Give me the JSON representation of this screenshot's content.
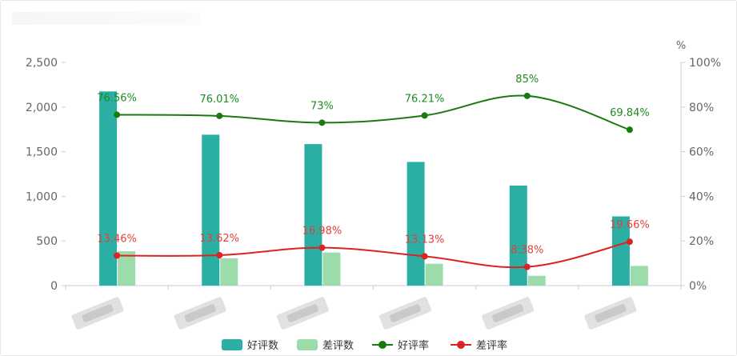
{
  "chart_data": {
    "type": "bar",
    "categories": [
      "",
      "",
      "",
      "",
      "",
      ""
    ],
    "series": [
      {
        "name": "好评数",
        "kind": "bar",
        "axis": "left",
        "color": "#2bafa5",
        "values": [
          2175,
          1690,
          1585,
          1385,
          1120,
          775
        ]
      },
      {
        "name": "差评数",
        "kind": "bar",
        "axis": "left",
        "color": "#9cdbaa",
        "values": [
          385,
          305,
          370,
          245,
          110,
          220
        ]
      },
      {
        "name": "好评率",
        "kind": "line",
        "axis": "right",
        "color": "#1a7a10",
        "values": [
          76.56,
          76.01,
          73,
          76.21,
          85,
          69.84
        ],
        "labels": [
          "76.56%",
          "76.01%",
          "73%",
          "76.21%",
          "85%",
          "69.84%"
        ]
      },
      {
        "name": "差评率",
        "kind": "line",
        "axis": "right",
        "color": "#dd2222",
        "values": [
          13.46,
          13.62,
          16.98,
          13.13,
          8.38,
          19.66
        ],
        "labels": [
          "13.46%",
          "13.62%",
          "16.98%",
          "13.13%",
          "8.38%",
          "19.66%"
        ]
      }
    ],
    "y_left": {
      "min": 0,
      "max": 2500,
      "ticks": [
        "0",
        "500",
        "1,000",
        "1,500",
        "2,000",
        "2,500"
      ]
    },
    "y_right": {
      "min": 0,
      "max": 100,
      "unit": "%",
      "ticks": [
        "0%",
        "20%",
        "40%",
        "60%",
        "80%",
        "100%"
      ]
    },
    "legend": {
      "position": "bottom-center",
      "items": [
        "好评数",
        "差评数",
        "好评率",
        "差评率"
      ]
    },
    "grid": false
  }
}
